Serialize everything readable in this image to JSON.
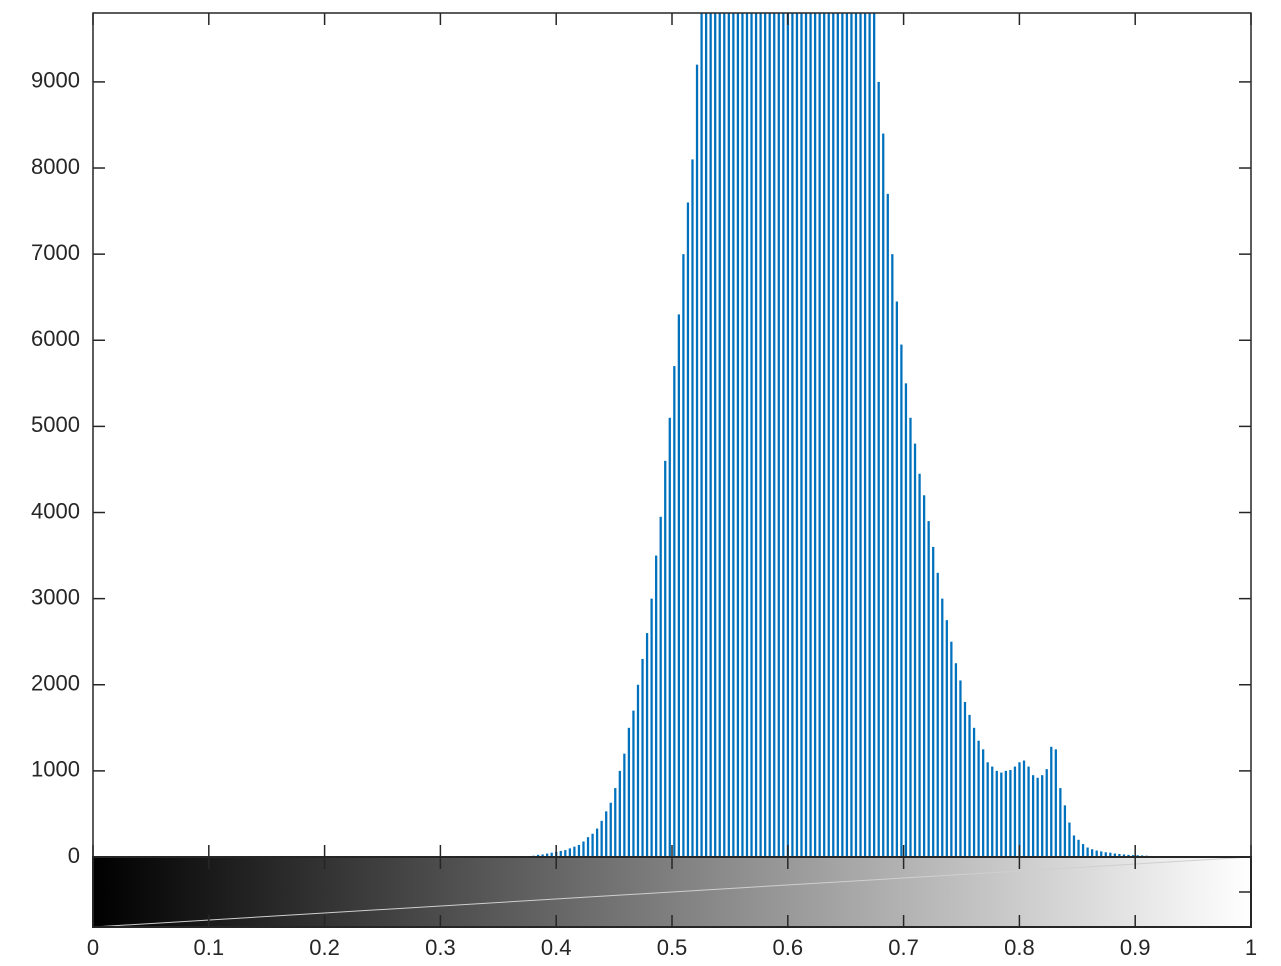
{
  "chart_data": {
    "type": "bar",
    "title": "",
    "xlabel": "",
    "ylabel": "",
    "xlim": [
      0,
      1
    ],
    "ylim": [
      0,
      9800
    ],
    "grid": false,
    "legend": "none",
    "bar_color": "#0072BD",
    "xticks": [
      "0",
      "0.1",
      "0.2",
      "0.3",
      "0.4",
      "0.5",
      "0.6",
      "0.7",
      "0.8",
      "0.9",
      "1"
    ],
    "yticks": [
      "0",
      "1000",
      "2000",
      "3000",
      "4000",
      "5000",
      "6000",
      "7000",
      "8000",
      "9000"
    ],
    "colorbar": {
      "type": "grayscale-gradient",
      "from": "#000000",
      "to": "#ffffff",
      "range": [
        0,
        1
      ]
    },
    "series": [
      {
        "x_start": 0.3765,
        "x_step": 0.003922,
        "values": [
          10,
          15,
          25,
          30,
          40,
          50,
          60,
          70,
          80,
          100,
          120,
          140,
          180,
          230,
          270,
          330,
          420,
          530,
          630,
          800,
          1000,
          1200,
          1500,
          1700,
          2000,
          2300,
          2600,
          3000,
          3500,
          3950,
          4600,
          5100,
          5700,
          6300,
          7000,
          7600,
          8100,
          9200,
          9800,
          9800,
          9800,
          9800,
          9800,
          9800,
          9800,
          9800,
          9800,
          9800,
          9800,
          9800,
          9800,
          9800,
          9800,
          9800,
          9800,
          9800,
          9800,
          9800,
          9800,
          9800,
          9800,
          9800,
          9800,
          9800,
          9800,
          9800,
          9800,
          9800,
          9800,
          9800,
          9800,
          9800,
          9800,
          9800,
          9800,
          9800,
          9800,
          9000,
          8400,
          7700,
          7000,
          6450,
          5950,
          5500,
          5100,
          4800,
          4450,
          4200,
          3900,
          3600,
          3300,
          3000,
          2750,
          2500,
          2250,
          2050,
          1800,
          1650,
          1500,
          1350,
          1250,
          1100,
          1050,
          1000,
          980,
          1000,
          1010,
          1050,
          1100,
          1120,
          1050,
          950,
          920,
          950,
          1020,
          1280,
          1250,
          800,
          600,
          400,
          250,
          200,
          150,
          110,
          90,
          75,
          65,
          55,
          50,
          40,
          35,
          30,
          25,
          22,
          20,
          18,
          15,
          12,
          10,
          8,
          6,
          5,
          5,
          4,
          4,
          3,
          2,
          2,
          2,
          1,
          1
        ]
      }
    ]
  }
}
